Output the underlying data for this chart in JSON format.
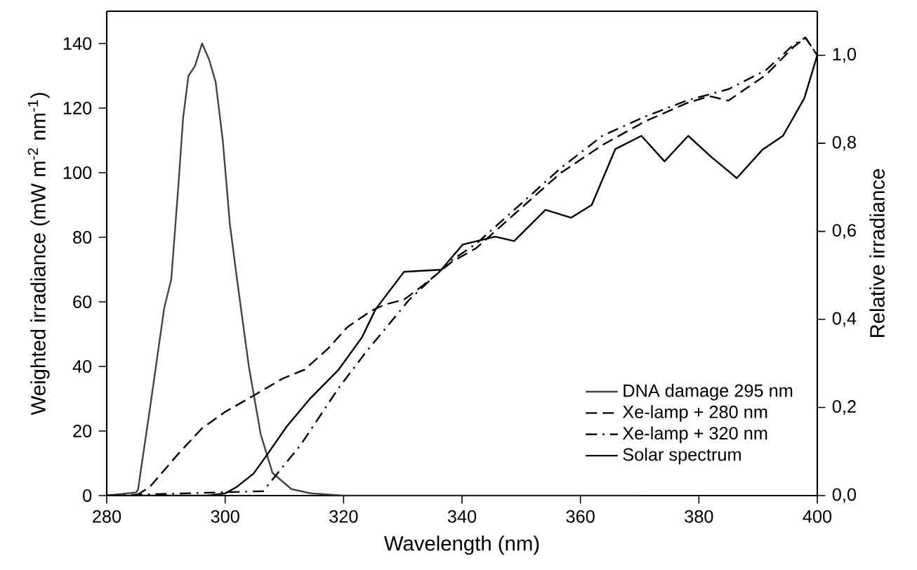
{
  "chart_data": {
    "type": "line",
    "xlabel": "Wavelength (nm)",
    "ylabel": "Weighted irradiance (mW m$^{-2}$ nm$^{-1}$)",
    "y2label": "Relative irradiance",
    "xlim": [
      280,
      400
    ],
    "xticks": [
      280,
      300,
      320,
      340,
      360,
      380,
      400
    ],
    "ylim": [
      0,
      150
    ],
    "yticks": [
      0,
      20,
      40,
      60,
      80,
      100,
      120,
      140
    ],
    "y2lim": [
      0,
      1.1
    ],
    "y2ticks": [
      {
        "value": 0,
        "label": "0,0"
      },
      {
        "value": 0.2,
        "label": "0,2"
      },
      {
        "value": 0.4,
        "label": "0,4"
      },
      {
        "value": 0.6,
        "label": "0,6"
      },
      {
        "value": 0.8,
        "label": "0,8"
      },
      {
        "value": 1.0,
        "label": "1,0"
      }
    ],
    "legend": "bottom right",
    "grid": false,
    "marker": "none",
    "series": [
      {
        "name": "DNA damage 295 nm",
        "color": "#444444",
        "line_style": "solid",
        "axis": "y",
        "x": [
          280,
          285,
          285.3,
          287.3,
          289.7,
          290.9,
          292.1,
          292.9,
          293.8,
          294.9,
          296.1,
          297.3,
          298.4,
          299.6,
          300.8,
          302,
          304,
          306,
          308,
          311.2,
          314.4,
          320,
          370
        ],
        "values": [
          0,
          1,
          2,
          27,
          58,
          67,
          96,
          117,
          130,
          133,
          140,
          135,
          128,
          110,
          84,
          67,
          40,
          19,
          7,
          2,
          0.7,
          0,
          0
        ]
      },
      {
        "name": "Xe-lamp + 280 nm",
        "color": "#000000",
        "line_style": "dashed",
        "axis": "y2",
        "x": [
          285,
          287.3,
          292.1,
          296.1,
          300,
          304.8,
          309.6,
          313.4,
          317.4,
          320.6,
          324.6,
          327,
          330.2,
          333.4,
          338.2,
          342.4,
          349.5,
          356.6,
          363.7,
          370.8,
          377.9,
          381.8,
          385,
          391.3,
          396,
          398,
          400
        ],
        "values": [
          0,
          0.02,
          0.095,
          0.153,
          0.19,
          0.227,
          0.265,
          0.286,
          0.334,
          0.382,
          0.419,
          0.434,
          0.445,
          0.477,
          0.53,
          0.562,
          0.647,
          0.732,
          0.796,
          0.849,
          0.891,
          0.907,
          0.897,
          0.955,
          1.019,
          1.04,
          1.0
        ]
      },
      {
        "name": "Xe-lamp + 320 nm",
        "color": "#000000",
        "line_style": "dashdot",
        "axis": "y2",
        "x": [
          280,
          306.4,
          312.8,
          319.1,
          323.9,
          331.1,
          338.2,
          342.4,
          349.5,
          356.6,
          363.7,
          370.8,
          377.9,
          385,
          391.3,
          396,
          398,
          400
        ],
        "values": [
          0,
          0.01,
          0.116,
          0.243,
          0.328,
          0.445,
          0.534,
          0.572,
          0.657,
          0.743,
          0.817,
          0.86,
          0.897,
          0.923,
          0.966,
          1.024,
          1.04,
          1.0
        ]
      },
      {
        "name": "Solar spectrum",
        "color": "#000000",
        "line_style": "solid",
        "axis": "y2",
        "x": [
          280,
          297,
          300,
          302,
          304.8,
          307.2,
          310.4,
          314.4,
          319.1,
          323.1,
          325.4,
          330.2,
          332.6,
          336.5,
          340.1,
          345.6,
          348.8,
          354.1,
          358.4,
          361.9,
          365.9,
          370.3,
          374.2,
          378.2,
          382.1,
          386.4,
          390.7,
          394.2,
          397.8,
          400
        ],
        "values": [
          0,
          0,
          0.005,
          0.02,
          0.05,
          0.095,
          0.157,
          0.221,
          0.285,
          0.359,
          0.423,
          0.508,
          0.51,
          0.513,
          0.57,
          0.588,
          0.578,
          0.649,
          0.631,
          0.66,
          0.787,
          0.817,
          0.759,
          0.817,
          0.769,
          0.721,
          0.785,
          0.817,
          0.902,
          1.0
        ]
      }
    ]
  }
}
